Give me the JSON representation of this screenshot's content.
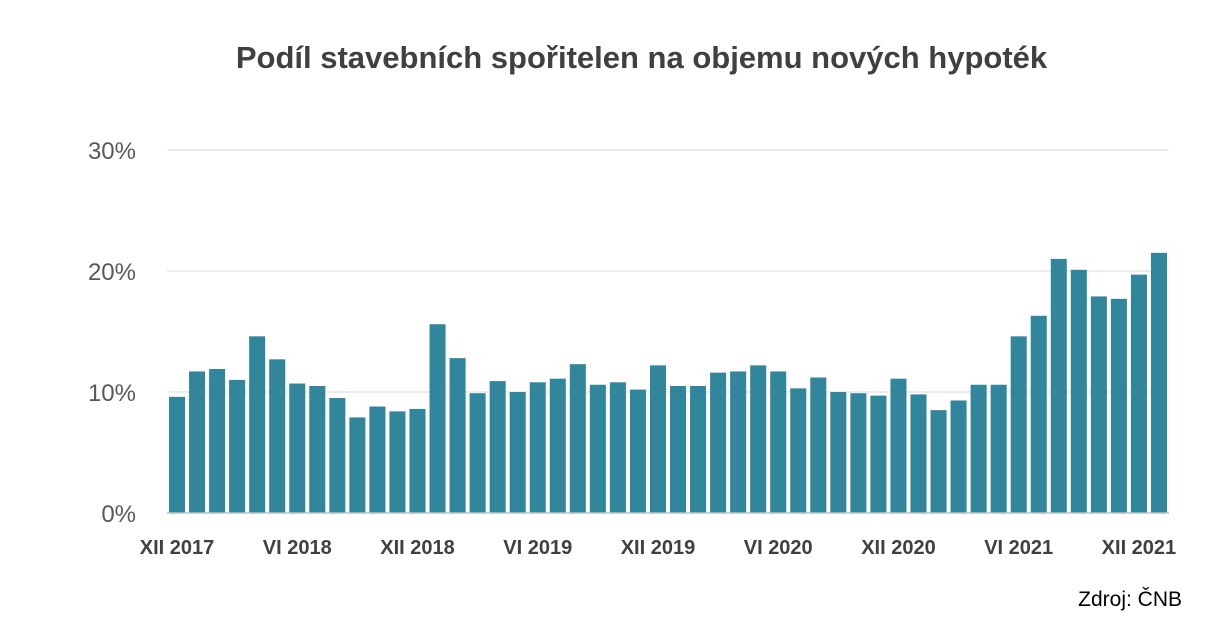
{
  "chart_data": {
    "type": "bar",
    "title": "Podíl stavebních spořitelen na objemu nových hypoték",
    "xlabel": "",
    "ylabel": "",
    "ylim": [
      0,
      30
    ],
    "y_ticks": [
      0,
      10,
      20,
      30
    ],
    "y_tick_labels": [
      "0%",
      "10%",
      "20%",
      "30%"
    ],
    "grid": true,
    "bar_color": "#31869b",
    "categories": [
      "XII 2017",
      "I 2018",
      "II 2018",
      "III 2018",
      "IV 2018",
      "V 2018",
      "VI 2018",
      "VII 2018",
      "VIII 2018",
      "IX 2018",
      "X 2018",
      "XI 2018",
      "XII 2018",
      "I 2019",
      "II 2019",
      "III 2019",
      "IV 2019",
      "V 2019",
      "VI 2019",
      "VII 2019",
      "VIII 2019",
      "IX 2019",
      "X 2019",
      "XI 2019",
      "XII 2019",
      "I 2020",
      "II 2020",
      "III 2020",
      "IV 2020",
      "V 2020",
      "VI 2020",
      "VII 2020",
      "VIII 2020",
      "IX 2020",
      "X 2020",
      "XI 2020",
      "XII 2020",
      "I 2021",
      "II 2021",
      "III 2021",
      "IV 2021",
      "V 2021",
      "VI 2021",
      "VII 2021",
      "VIII 2021",
      "IX 2021",
      "X 2021",
      "XI 2021",
      "XII 2021",
      "I 2022"
    ],
    "x_tick_labels": [
      {
        "index": 0,
        "label": "XII 2017"
      },
      {
        "index": 6,
        "label": "VI 2018"
      },
      {
        "index": 12,
        "label": "XII 2018"
      },
      {
        "index": 18,
        "label": "VI 2019"
      },
      {
        "index": 24,
        "label": "XII 2019"
      },
      {
        "index": 30,
        "label": "VI 2020"
      },
      {
        "index": 36,
        "label": "XII 2020"
      },
      {
        "index": 42,
        "label": "VI 2021"
      },
      {
        "index": 48,
        "label": "XII 2021"
      }
    ],
    "values": [
      9.6,
      11.7,
      11.9,
      11.0,
      14.6,
      12.7,
      10.7,
      10.5,
      9.5,
      7.9,
      8.8,
      8.4,
      8.6,
      15.6,
      12.8,
      9.9,
      10.9,
      10.0,
      10.8,
      11.1,
      12.3,
      10.6,
      10.8,
      10.2,
      12.2,
      10.5,
      10.5,
      11.6,
      11.7,
      12.2,
      11.7,
      10.3,
      11.2,
      10.0,
      9.9,
      9.7,
      11.1,
      9.8,
      8.5,
      9.3,
      10.6,
      10.6,
      14.6,
      16.3,
      21.0,
      20.1,
      17.9,
      17.7,
      19.7,
      21.5
    ]
  },
  "source": "Zdroj: ČNB"
}
